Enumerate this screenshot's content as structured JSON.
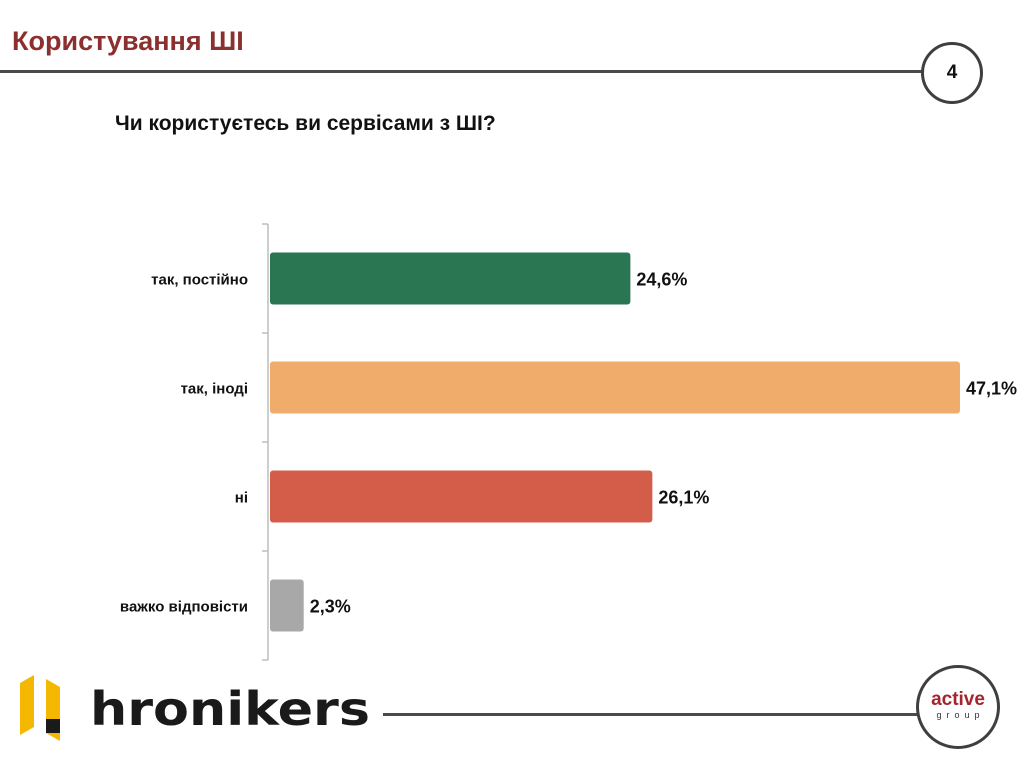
{
  "header": {
    "title": "Користування ШІ",
    "page_number": "4"
  },
  "question": "Чи користуєтесь ви сервісами з ШІ?",
  "chart_data": {
    "type": "bar",
    "orientation": "horizontal",
    "title": "Чи користуєтесь ви сервісами з ШІ?",
    "categories": [
      "так, постійно",
      "так, іноді",
      "ні",
      "важко відповісти"
    ],
    "values": [
      24.6,
      47.1,
      26.1,
      2.3
    ],
    "value_labels": [
      "24,6%",
      "47,1%",
      "26,1%",
      "2,3%"
    ],
    "colors": [
      "#2a7552",
      "#f0ac6b",
      "#d45d4a",
      "#a8a8a8"
    ],
    "xlim": [
      0,
      47.1
    ],
    "grid": false,
    "legend": "none"
  },
  "footer": {
    "brand": "hronikers",
    "partner_word": "active",
    "partner_sub": "group",
    "brand_colors": {
      "accent": "#f5b800",
      "text": "#1a1a1a"
    }
  }
}
